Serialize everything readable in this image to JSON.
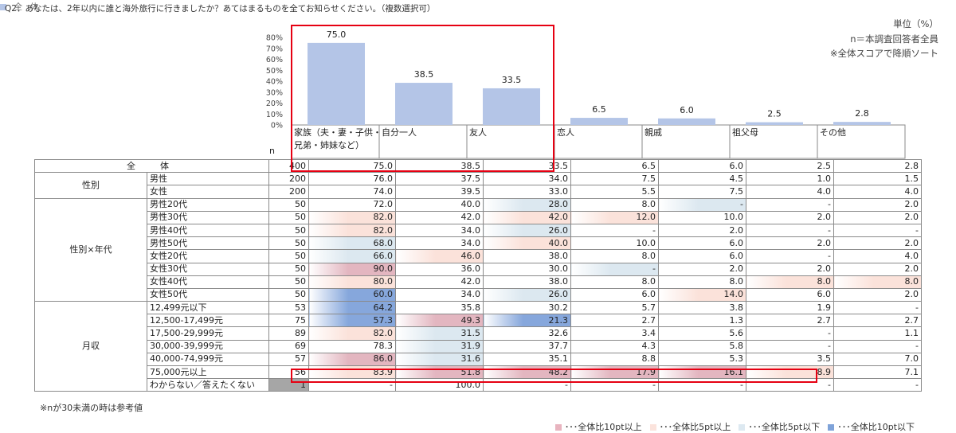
{
  "header": {
    "question": "Q2．あなたは、2年以内に誰と海外旅行に行きましたか？あてはまるものを全てお知らせください。（複数選択可）",
    "unit": "単位（%）",
    "n_note": "n＝本調査回答者全員",
    "sort_note": "※全体スコアで降順ソート"
  },
  "legend_top": {
    "label": "全　体",
    "color": "#b4c5e7"
  },
  "n_label": "n",
  "chart_data": {
    "type": "bar",
    "categories": [
      "家族（夫・妻・子供・兄弟・姉妹など）",
      "自分一人",
      "友人",
      "恋人",
      "親戚",
      "祖父母",
      "その他"
    ],
    "category_lines": [
      [
        "家族（夫・妻・子供・",
        "兄弟・姉妹など）"
      ],
      [
        "自分一人"
      ],
      [
        "友人"
      ],
      [
        "恋人"
      ],
      [
        "親戚"
      ],
      [
        "祖父母"
      ],
      [
        "その他"
      ]
    ],
    "series": [
      {
        "name": "全　体",
        "values": [
          75.0,
          38.5,
          33.5,
          6.5,
          6.0,
          2.5,
          2.8
        ]
      }
    ],
    "value_labels": [
      "75.0",
      "38.5",
      "33.5",
      "6.5",
      "6.0",
      "2.5",
      "2.8"
    ],
    "ylim": [
      0,
      80
    ],
    "yticks": [
      "0%",
      "10%",
      "20%",
      "30%",
      "40%",
      "50%",
      "60%",
      "70%",
      "80%"
    ],
    "bar_color": "#b4c5e7",
    "grid": false,
    "legend": "top-left"
  },
  "table": {
    "rows": [
      {
        "group": "全　体",
        "label": "",
        "n": "400",
        "values": [
          "75.0",
          "38.5",
          "33.5",
          "6.5",
          "6.0",
          "2.5",
          "2.8"
        ],
        "hl": [
          "",
          "",
          "",
          "",
          "",
          "",
          ""
        ]
      },
      {
        "group": "性別",
        "label": "男性",
        "n": "200",
        "values": [
          "76.0",
          "37.5",
          "34.0",
          "7.5",
          "4.5",
          "1.0",
          "1.5"
        ],
        "hl": [
          "",
          "",
          "",
          "",
          "",
          "",
          ""
        ]
      },
      {
        "group": "",
        "label": "女性",
        "n": "200",
        "values": [
          "74.0",
          "39.5",
          "33.0",
          "5.5",
          "7.5",
          "4.0",
          "4.0"
        ],
        "hl": [
          "",
          "",
          "",
          "",
          "",
          "",
          ""
        ]
      },
      {
        "group": "性別×年代",
        "label": "男性20代",
        "n": "50",
        "values": [
          "72.0",
          "40.0",
          "28.0",
          "8.0",
          "-",
          "-",
          "2.0"
        ],
        "hl": [
          "",
          "",
          "b5",
          "",
          "b5",
          "",
          ""
        ]
      },
      {
        "group": "",
        "label": "男性30代",
        "n": "50",
        "values": [
          "82.0",
          "42.0",
          "42.0",
          "12.0",
          "10.0",
          "2.0",
          "2.0"
        ],
        "hl": [
          "r5",
          "",
          "r5",
          "r5",
          "",
          "",
          ""
        ]
      },
      {
        "group": "",
        "label": "男性40代",
        "n": "50",
        "values": [
          "82.0",
          "34.0",
          "26.0",
          "-",
          "2.0",
          "-",
          "-"
        ],
        "hl": [
          "r5",
          "",
          "b5",
          "",
          "",
          "",
          ""
        ]
      },
      {
        "group": "",
        "label": "男性50代",
        "n": "50",
        "values": [
          "68.0",
          "34.0",
          "40.0",
          "10.0",
          "6.0",
          "2.0",
          "2.0"
        ],
        "hl": [
          "b5",
          "",
          "r5",
          "",
          "",
          "",
          ""
        ]
      },
      {
        "group": "",
        "label": "女性20代",
        "n": "50",
        "values": [
          "66.0",
          "46.0",
          "38.0",
          "8.0",
          "6.0",
          "-",
          "4.0"
        ],
        "hl": [
          "b5",
          "r5",
          "",
          "",
          "",
          "",
          ""
        ]
      },
      {
        "group": "",
        "label": "女性30代",
        "n": "50",
        "values": [
          "90.0",
          "36.0",
          "30.0",
          "-",
          "2.0",
          "2.0",
          "2.0"
        ],
        "hl": [
          "r10",
          "",
          "",
          "b5",
          "",
          "",
          ""
        ]
      },
      {
        "group": "",
        "label": "女性40代",
        "n": "50",
        "values": [
          "80.0",
          "42.0",
          "38.0",
          "8.0",
          "8.0",
          "8.0",
          "8.0"
        ],
        "hl": [
          "r5",
          "",
          "",
          "",
          "",
          "r5",
          "r5"
        ]
      },
      {
        "group": "",
        "label": "女性50代",
        "n": "50",
        "values": [
          "60.0",
          "34.0",
          "26.0",
          "6.0",
          "14.0",
          "6.0",
          "2.0"
        ],
        "hl": [
          "b10",
          "",
          "b5",
          "",
          "r5",
          "",
          ""
        ]
      },
      {
        "group": "月収",
        "label": "12,499元以下",
        "n": "53",
        "values": [
          "64.2",
          "35.8",
          "30.2",
          "5.7",
          "3.8",
          "1.9",
          "-"
        ],
        "hl": [
          "b10",
          "",
          "",
          "",
          "",
          "",
          ""
        ]
      },
      {
        "group": "",
        "label": "12,500-17,499元",
        "n": "75",
        "values": [
          "57.3",
          "49.3",
          "21.3",
          "2.7",
          "1.3",
          "2.7",
          "2.7"
        ],
        "hl": [
          "b10",
          "r10",
          "b10",
          "",
          "",
          "",
          ""
        ]
      },
      {
        "group": "",
        "label": "17,500-29,999元",
        "n": "89",
        "values": [
          "82.0",
          "31.5",
          "32.6",
          "3.4",
          "5.6",
          "-",
          "1.1"
        ],
        "hl": [
          "r5",
          "b5",
          "",
          "",
          "",
          "",
          ""
        ]
      },
      {
        "group": "",
        "label": "30,000-39,999元",
        "n": "69",
        "values": [
          "78.3",
          "31.9",
          "37.7",
          "4.3",
          "5.8",
          "-",
          "-"
        ],
        "hl": [
          "",
          "b5",
          "",
          "",
          "",
          "",
          ""
        ]
      },
      {
        "group": "",
        "label": "40,000-74,999元",
        "n": "57",
        "values": [
          "86.0",
          "31.6",
          "35.1",
          "8.8",
          "5.3",
          "3.5",
          "7.0"
        ],
        "hl": [
          "r10",
          "b5",
          "",
          "",
          "",
          "",
          ""
        ]
      },
      {
        "group": "",
        "label": "75,000元以上",
        "n": "56",
        "values": [
          "83.9",
          "51.8",
          "48.2",
          "17.9",
          "16.1",
          "8.9",
          "7.1"
        ],
        "hl": [
          "r5",
          "r10",
          "r10",
          "r10",
          "r10",
          "r5",
          ""
        ]
      },
      {
        "group": "",
        "label": "わからない／答えたくない",
        "n": "1",
        "values": [
          "-",
          "100.0",
          "-",
          "-",
          "-",
          "-",
          "-"
        ],
        "hl": [
          "",
          "",
          "",
          "",
          "",
          "",
          ""
        ],
        "n_gray": true
      }
    ]
  },
  "footnote": "※nが30未満の時は参考値",
  "legend_bottom": [
    {
      "label": "･･･全体比10pt以上",
      "color": "#e8b4bf"
    },
    {
      "label": "･･･全体比5pt以上",
      "color": "#fbe3dc"
    },
    {
      "label": "･･･全体比5pt以下",
      "color": "#dde9f1"
    },
    {
      "label": "･･･全体比10pt以下",
      "color": "#7fa3d9"
    }
  ],
  "highlight_colors": {
    "r10": "#e3b6c0",
    "r5": "#fbe2da",
    "b5": "#dce8f0",
    "b10": "#86a7dc"
  },
  "accent_red": "#e60012"
}
